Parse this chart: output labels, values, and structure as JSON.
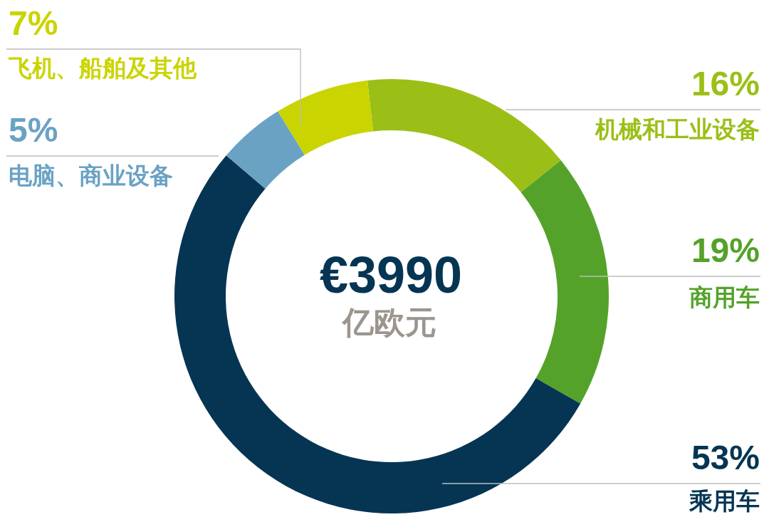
{
  "chart_data": {
    "type": "donut",
    "categories": [
      "机械和工业设备",
      "商用车",
      "乘用车",
      "电脑、商业设备",
      "飞机、船舶及其他"
    ],
    "values": [
      16,
      19,
      53,
      5,
      7
    ],
    "colors": [
      "#9bbf17",
      "#55a22a",
      "#053553",
      "#6aa2c4",
      "#cad400"
    ],
    "value_labels": [
      "16%",
      "19%",
      "53%",
      "5%",
      "7%"
    ],
    "annotations": [
      "€3990",
      "亿欧元"
    ],
    "legend": false
  }
}
